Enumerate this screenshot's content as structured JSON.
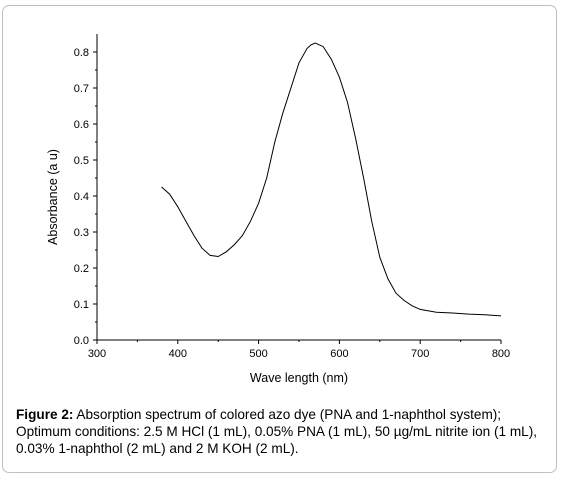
{
  "chart_data": {
    "type": "line",
    "xlabel": "Wave length (nm)",
    "ylabel": "Absorbance (a u)",
    "xlim": [
      300,
      800
    ],
    "ylim": [
      0.0,
      0.85
    ],
    "x_ticks": [
      "300",
      "400",
      "500",
      "600",
      "700",
      "800"
    ],
    "y_ticks": [
      "0.0",
      "0.1",
      "0.2",
      "0.3",
      "0.4",
      "0.5",
      "0.6",
      "0.7",
      "0.8"
    ],
    "grid": false,
    "legend": "none",
    "series": [
      {
        "color": "#000000",
        "x": [
          380,
          390,
          400,
          410,
          420,
          430,
          440,
          450,
          460,
          470,
          480,
          490,
          500,
          510,
          520,
          530,
          540,
          550,
          560,
          565,
          570,
          580,
          590,
          600,
          610,
          620,
          630,
          640,
          650,
          660,
          670,
          680,
          690,
          700,
          720,
          740,
          760,
          780,
          800
        ],
        "y": [
          0.425,
          0.405,
          0.37,
          0.33,
          0.29,
          0.255,
          0.235,
          0.232,
          0.245,
          0.265,
          0.29,
          0.33,
          0.38,
          0.45,
          0.55,
          0.63,
          0.7,
          0.77,
          0.81,
          0.82,
          0.825,
          0.815,
          0.78,
          0.73,
          0.66,
          0.56,
          0.45,
          0.33,
          0.23,
          0.17,
          0.13,
          0.11,
          0.095,
          0.085,
          0.077,
          0.075,
          0.072,
          0.07,
          0.067
        ]
      }
    ]
  },
  "caption": {
    "label": "Figure 2:",
    "text": " Absorption spectrum of colored azo dye (PNA and 1-naphthol system); Optimum conditions: 2.5 M HCl (1 mL), 0.05% PNA (1 mL), 50 µg/mL nitrite ion (1 mL), 0.03% 1-naphthol (2 mL) and 2 M KOH (2 mL)."
  }
}
